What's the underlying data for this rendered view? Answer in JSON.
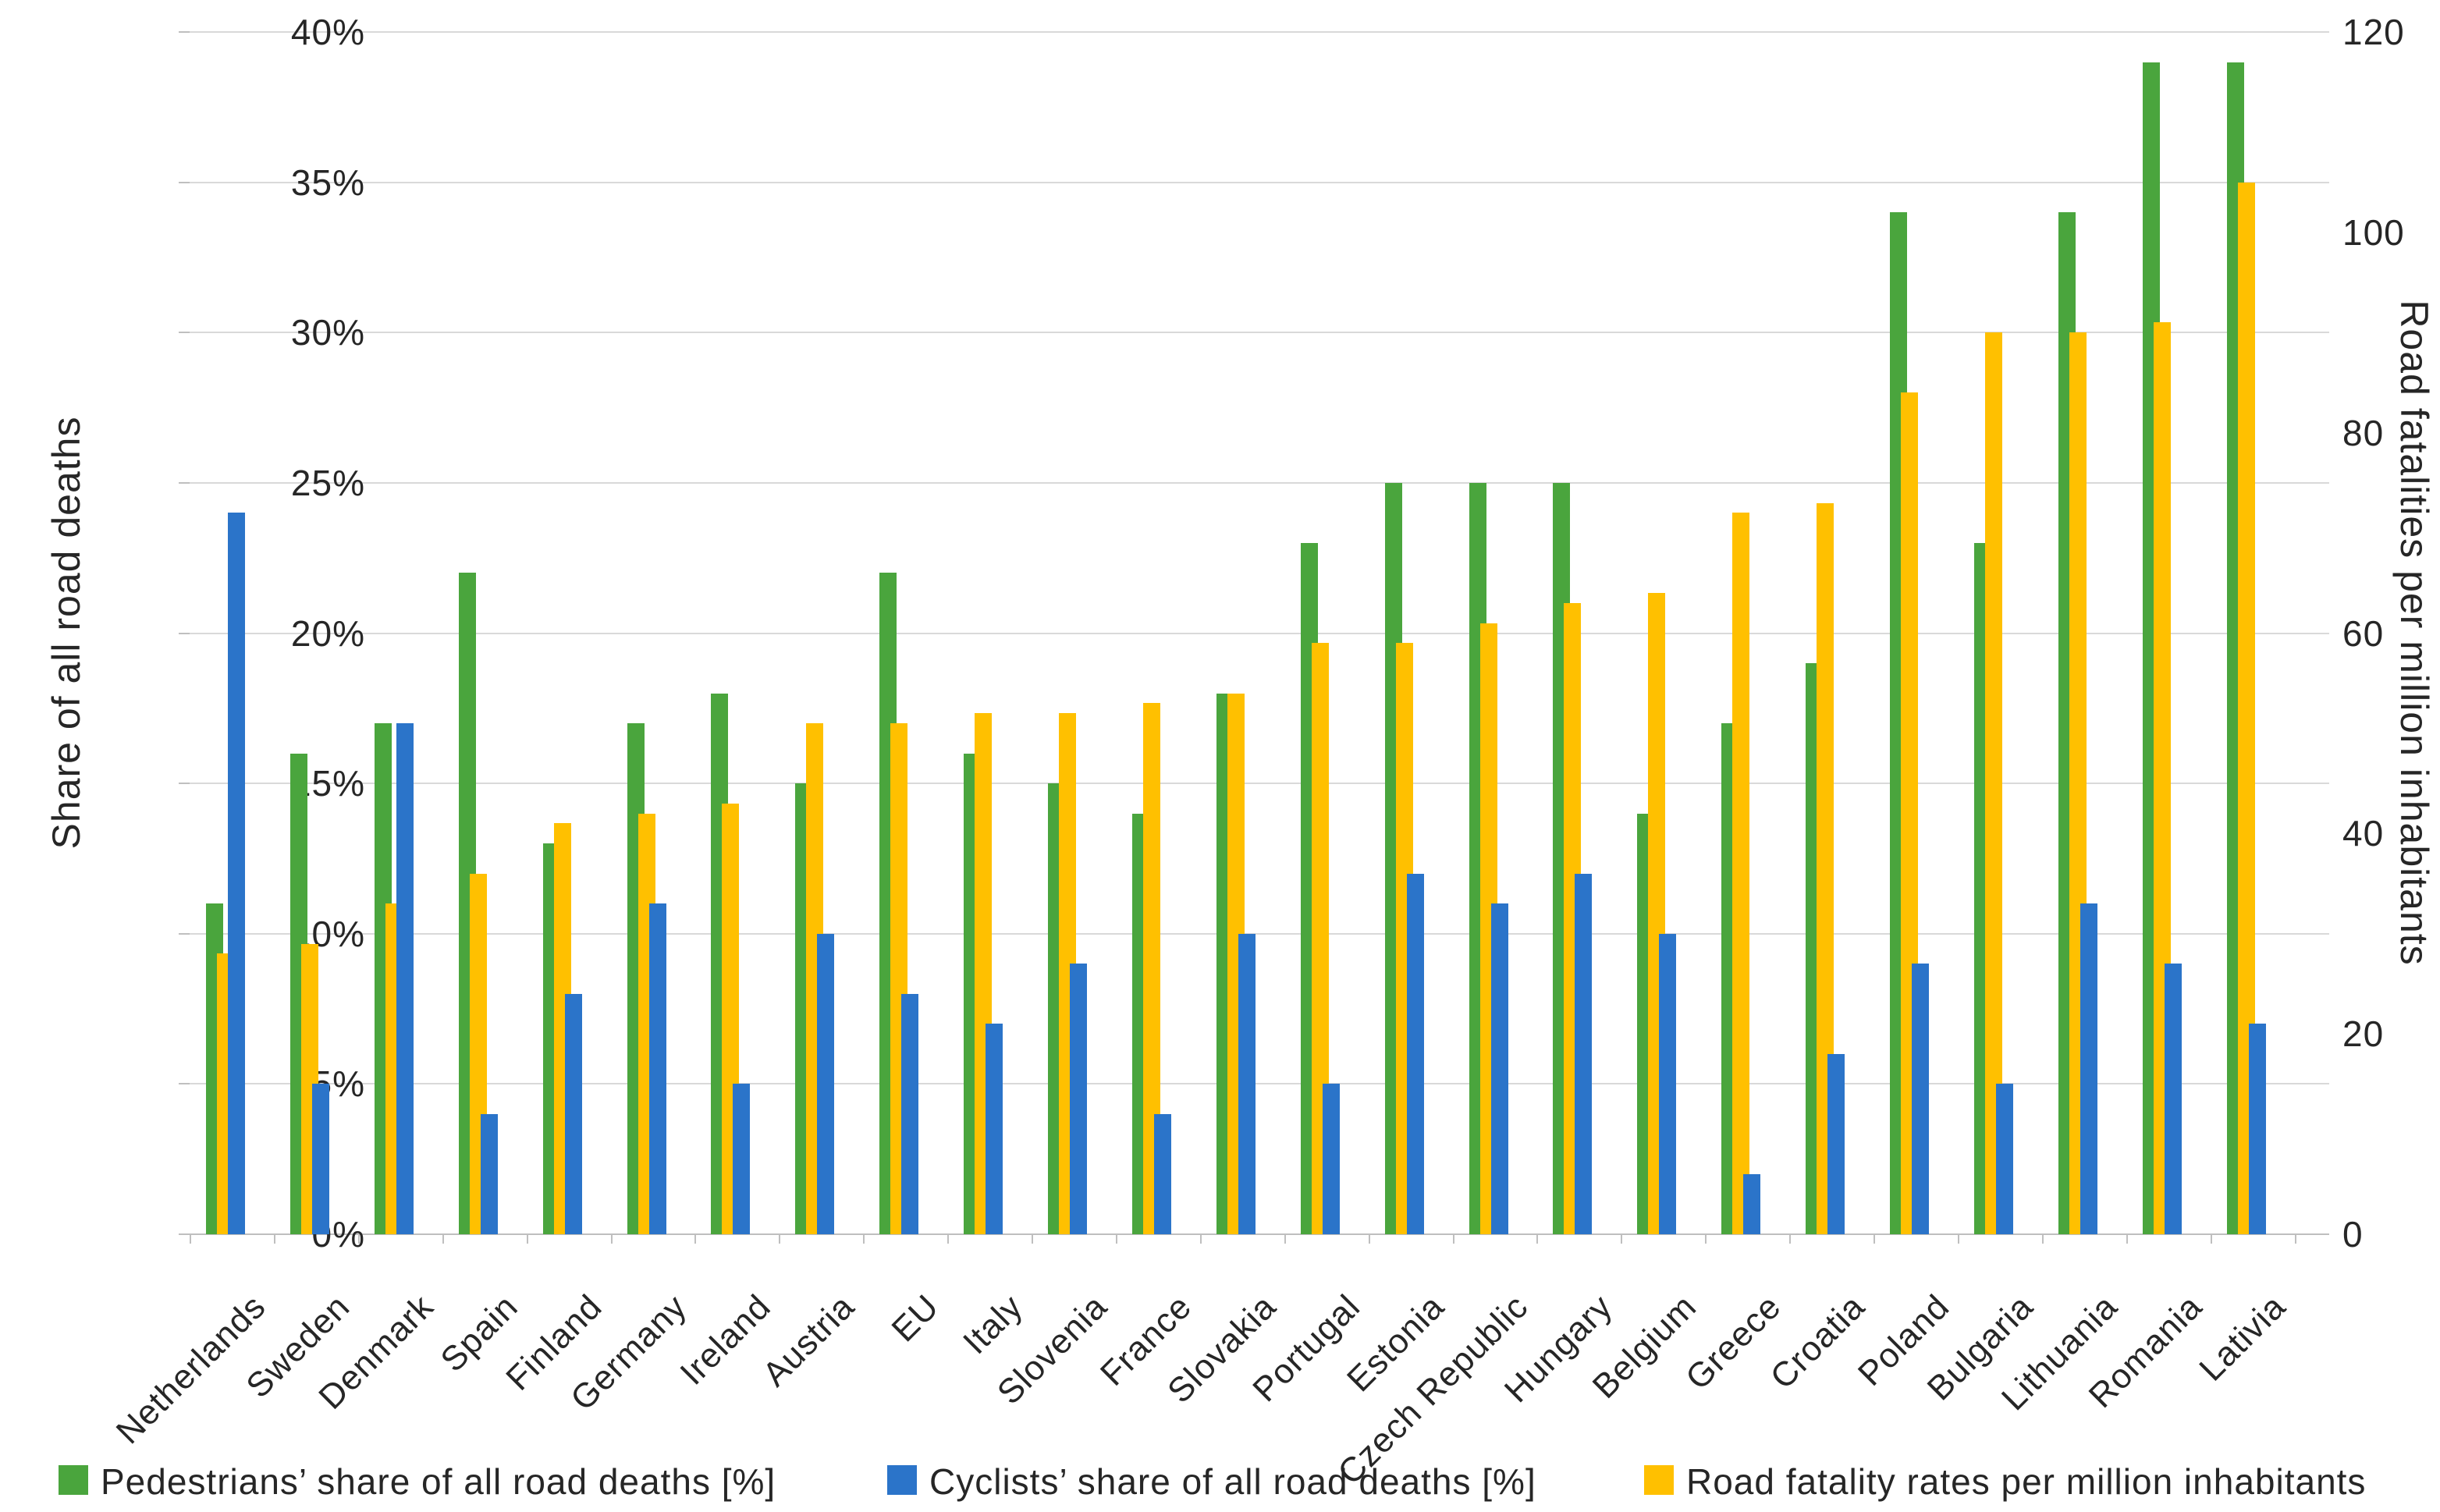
{
  "chart_data": {
    "type": "bar",
    "title": "",
    "categories": [
      "Netherlands",
      "Sweden",
      "Denmark",
      "Spain",
      "Finland",
      "Germany",
      "Ireland",
      "Austria",
      "EU",
      "Italy",
      "Slovenia",
      "France",
      "Slovakia",
      "Portugal",
      "Estonia",
      "Czech Republic",
      "Hungary",
      "Belgium",
      "Greece",
      "Croatia",
      "Poland",
      "Bulgaria",
      "Lithuania",
      "Romania",
      "Lativia"
    ],
    "series": [
      {
        "name": "Pedestrians’ share of all road deaths [%]",
        "axis": "left",
        "color": "#4aa53d",
        "values": [
          11,
          16,
          17,
          22,
          13,
          17,
          18,
          15,
          22,
          16,
          15,
          14,
          18,
          23,
          25,
          25,
          25,
          14,
          17,
          19,
          34,
          23,
          34,
          39,
          39
        ]
      },
      {
        "name": "Cyclists’ share of all road deaths [%]",
        "axis": "left",
        "color": "#2b74c9",
        "values": [
          24,
          5,
          17,
          4,
          8,
          11,
          5,
          10,
          8,
          7,
          9,
          4,
          10,
          5,
          12,
          11,
          12,
          10,
          2,
          6,
          9,
          5,
          11,
          9,
          7
        ]
      },
      {
        "name": "Road fatality rates per million inhabitants",
        "axis": "right",
        "color": "#ffc000",
        "values": [
          28,
          29,
          33,
          36,
          41,
          42,
          43,
          51,
          51,
          52,
          52,
          53,
          54,
          59,
          59,
          61,
          63,
          64,
          72,
          73,
          84,
          90,
          90,
          91,
          105
        ]
      }
    ],
    "cluster_draw_order": [
      0,
      2,
      1
    ],
    "left_axis": {
      "label": "Share of all road deaths",
      "min": 0,
      "max": 40,
      "ticks": [
        "40%",
        "35%",
        "30%",
        "25%",
        "20%",
        "15%",
        "10%",
        "5%",
        "0%"
      ]
    },
    "right_axis": {
      "label": "Road fatalities per million inhabitants",
      "min": 0,
      "max": 120,
      "ticks": [
        "120",
        "100",
        "80",
        "60",
        "40",
        "20",
        "0"
      ]
    },
    "grid": true,
    "legend_position": "bottom"
  },
  "legend": {
    "items": [
      {
        "label": "Pedestrians’ share of all road deaths [%]",
        "color": "#4aa53d"
      },
      {
        "label": "Cyclists’ share of all road deaths [%]",
        "color": "#2b74c9"
      },
      {
        "label": "Road fatality rates per million inhabitants",
        "color": "#ffc000"
      }
    ]
  },
  "colors": {
    "gridline": "#d9d9d9",
    "baseline": "#bfbfbf",
    "text": "#262626"
  }
}
